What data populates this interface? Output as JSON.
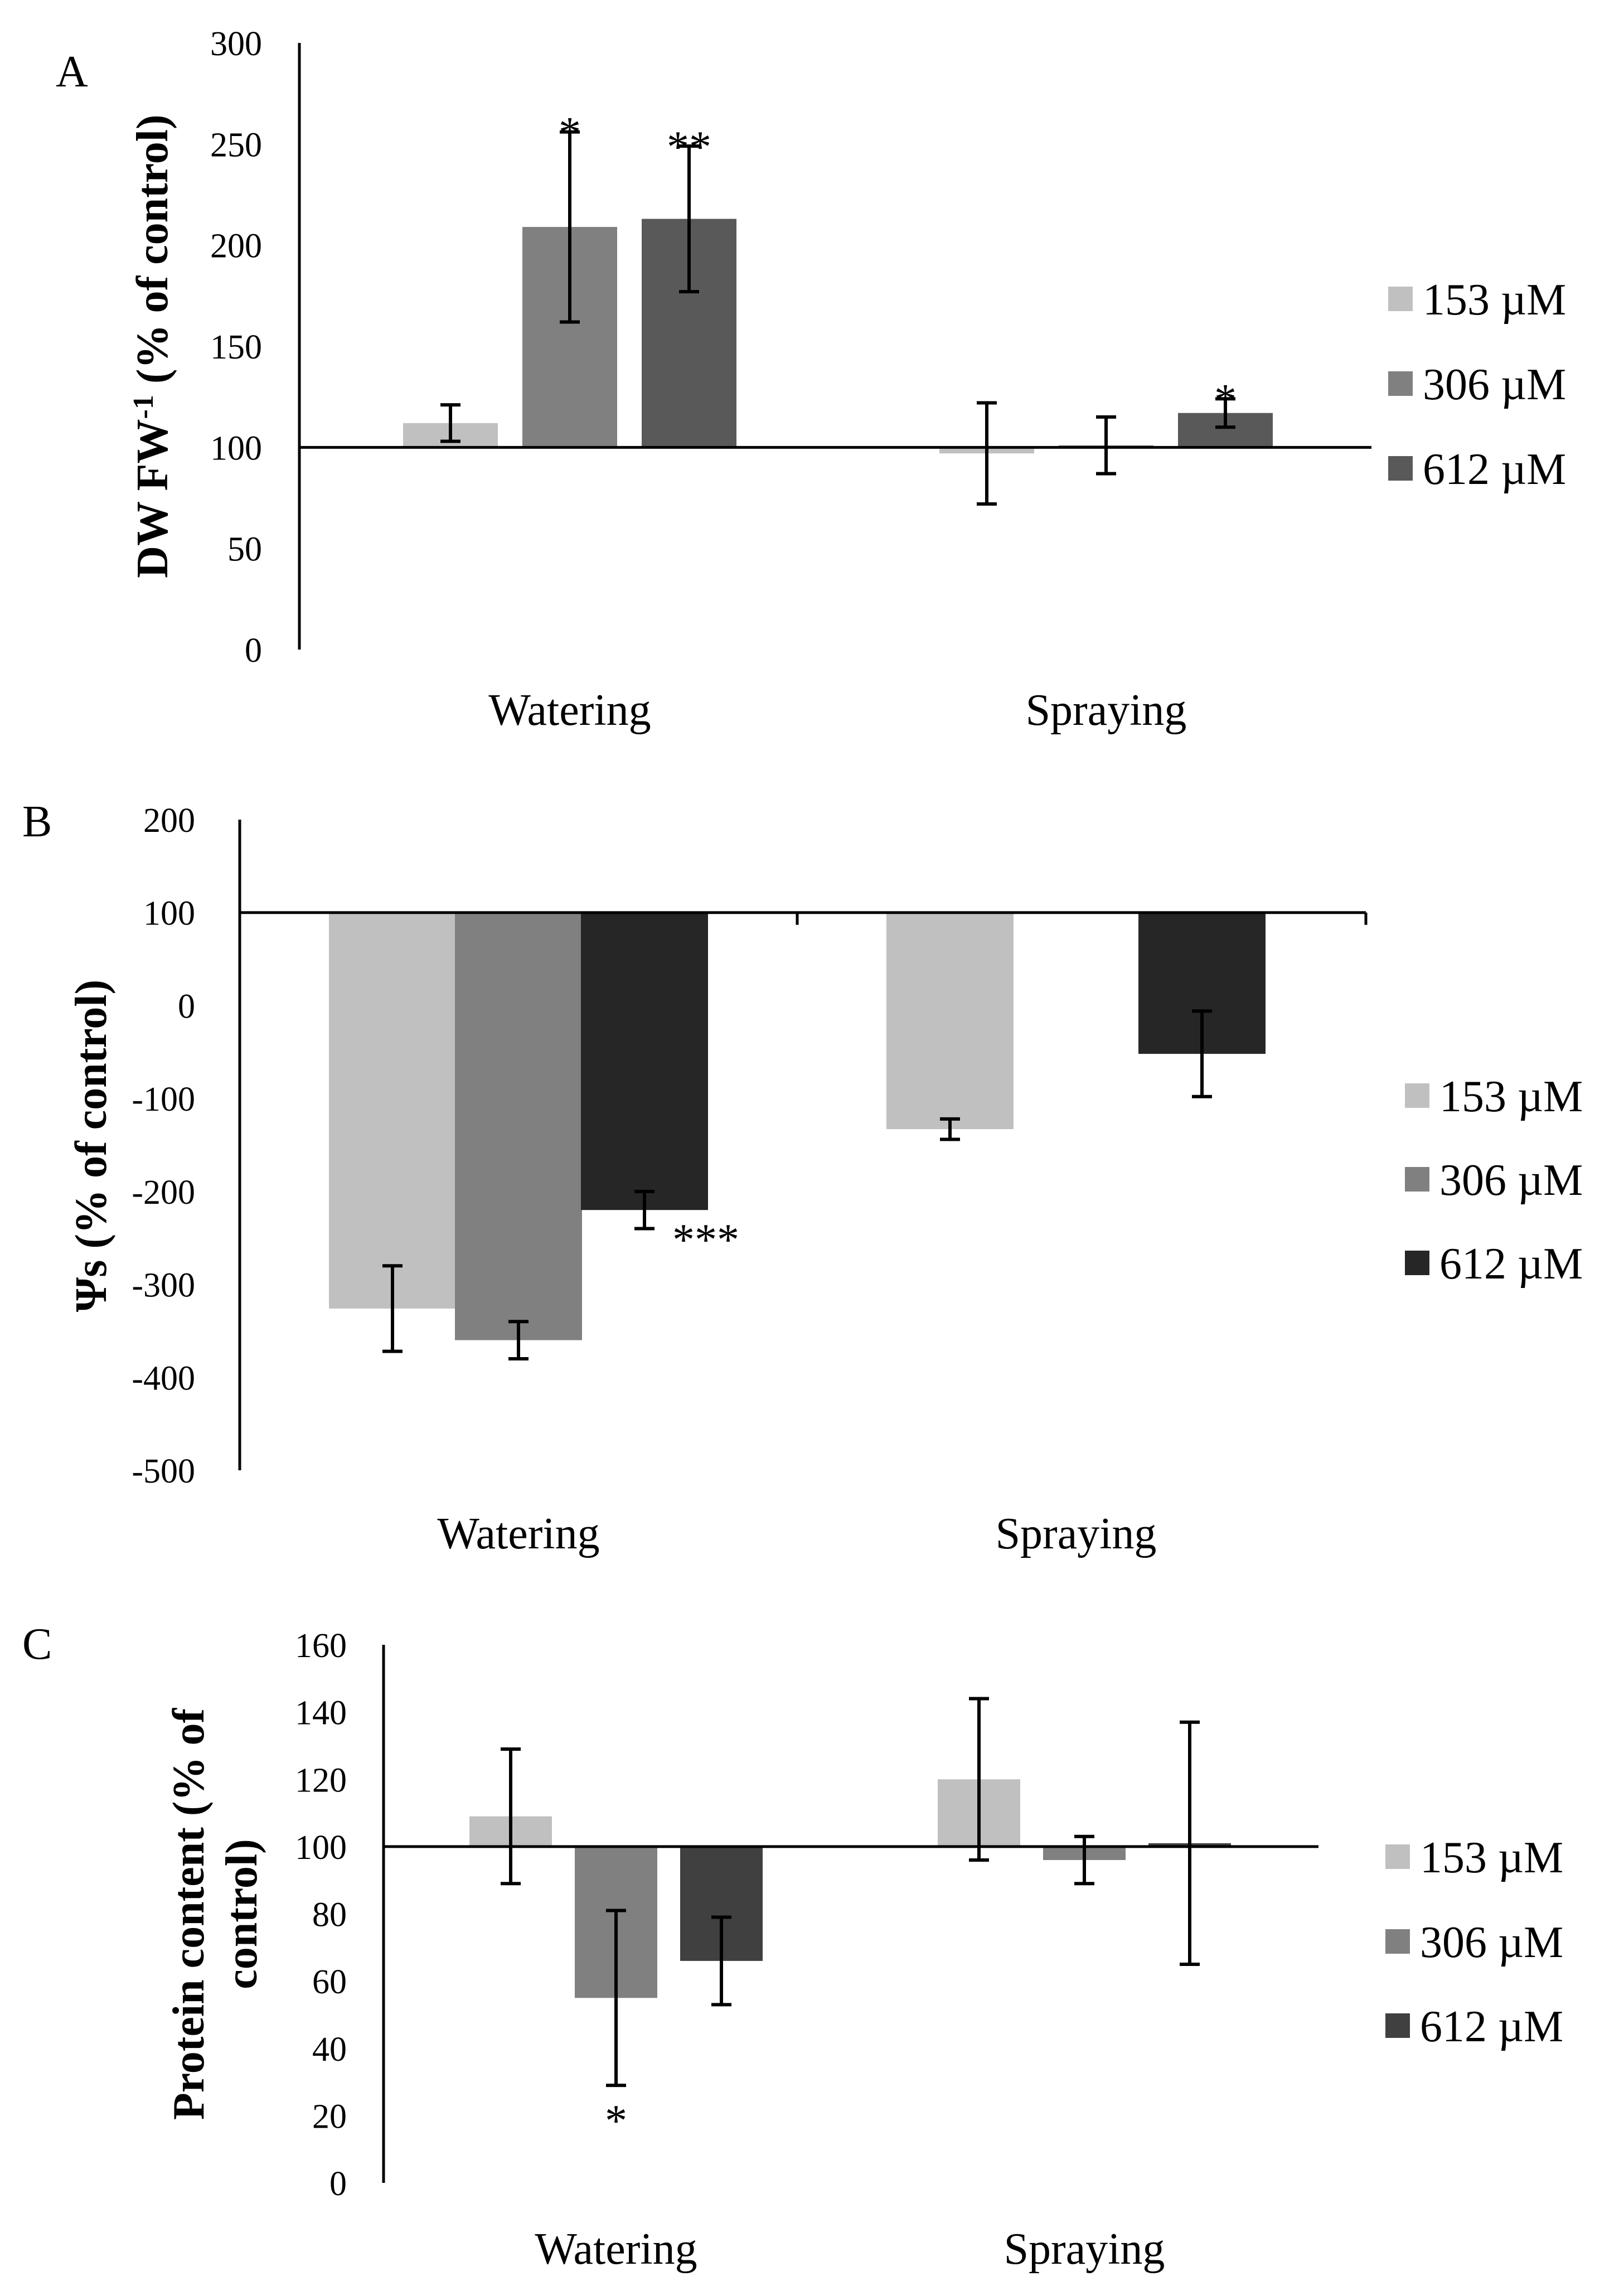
{
  "chart_data": [
    {
      "panel": "A",
      "type": "bar",
      "ylabel": "DW FW",
      "ylabel_superscript": "-1",
      "ylabel_suffix": " (% of control)",
      "ylim": [
        0,
        300
      ],
      "yticks": [
        0,
        50,
        100,
        150,
        200,
        250,
        300
      ],
      "baseline": 100,
      "categories": [
        "Watering",
        "Spraying"
      ],
      "series": [
        {
          "name": "153 µM",
          "color": "#c0c0c0",
          "values": [
            112,
            97
          ],
          "errors": [
            9,
            25
          ],
          "sig": [
            "",
            ""
          ]
        },
        {
          "name": "306 µM",
          "color": "#808080",
          "values": [
            209,
            101
          ],
          "errors": [
            47,
            14
          ],
          "sig": [
            "*",
            ""
          ]
        },
        {
          "name": "612 µM",
          "color": "#595959",
          "values": [
            213,
            117
          ],
          "errors": [
            36,
            7
          ],
          "sig": [
            "**",
            "*"
          ]
        }
      ]
    },
    {
      "panel": "B",
      "type": "bar",
      "ylabel": "Ψs (% of control)",
      "ylim": [
        -500,
        200
      ],
      "yticks": [
        -500,
        -400,
        -300,
        -200,
        -100,
        0,
        100,
        200
      ],
      "baseline": 100,
      "categories": [
        "Watering",
        "Spraying"
      ],
      "series": [
        {
          "name": "153 µM",
          "color": "#c0c0c0",
          "values": [
            -326,
            -133
          ],
          "errors": [
            46,
            11
          ],
          "sig": [
            "",
            ""
          ]
        },
        {
          "name": "306 µM",
          "color": "#808080",
          "values": [
            -360,
            100
          ],
          "errors": [
            20,
            0
          ],
          "sig": [
            "",
            ""
          ]
        },
        {
          "name": "612 µM",
          "color": "#262626",
          "values": [
            -220,
            -52
          ],
          "errors": [
            20,
            46
          ],
          "sig": [
            "***",
            ""
          ]
        }
      ]
    },
    {
      "panel": "C",
      "type": "bar",
      "ylabel": "Protein content (% of control)",
      "ylabel_line1": "Protein content (% of",
      "ylabel_line2": "control)",
      "ylim": [
        0,
        160
      ],
      "yticks": [
        0,
        20,
        40,
        60,
        80,
        100,
        120,
        140,
        160
      ],
      "baseline": 100,
      "categories": [
        "Watering",
        "Spraying"
      ],
      "series": [
        {
          "name": "153 µM",
          "color": "#c0c0c0",
          "values": [
            109,
            120
          ],
          "errors": [
            20,
            24
          ],
          "sig": [
            "",
            ""
          ]
        },
        {
          "name": "306 µM",
          "color": "#808080",
          "values": [
            55,
            96
          ],
          "errors": [
            26,
            7
          ],
          "sig": [
            "*",
            ""
          ]
        },
        {
          "name": "612 µM",
          "color": "#404040",
          "values": [
            66,
            101
          ],
          "errors": [
            13,
            36
          ],
          "sig": [
            "",
            ""
          ]
        }
      ]
    }
  ]
}
